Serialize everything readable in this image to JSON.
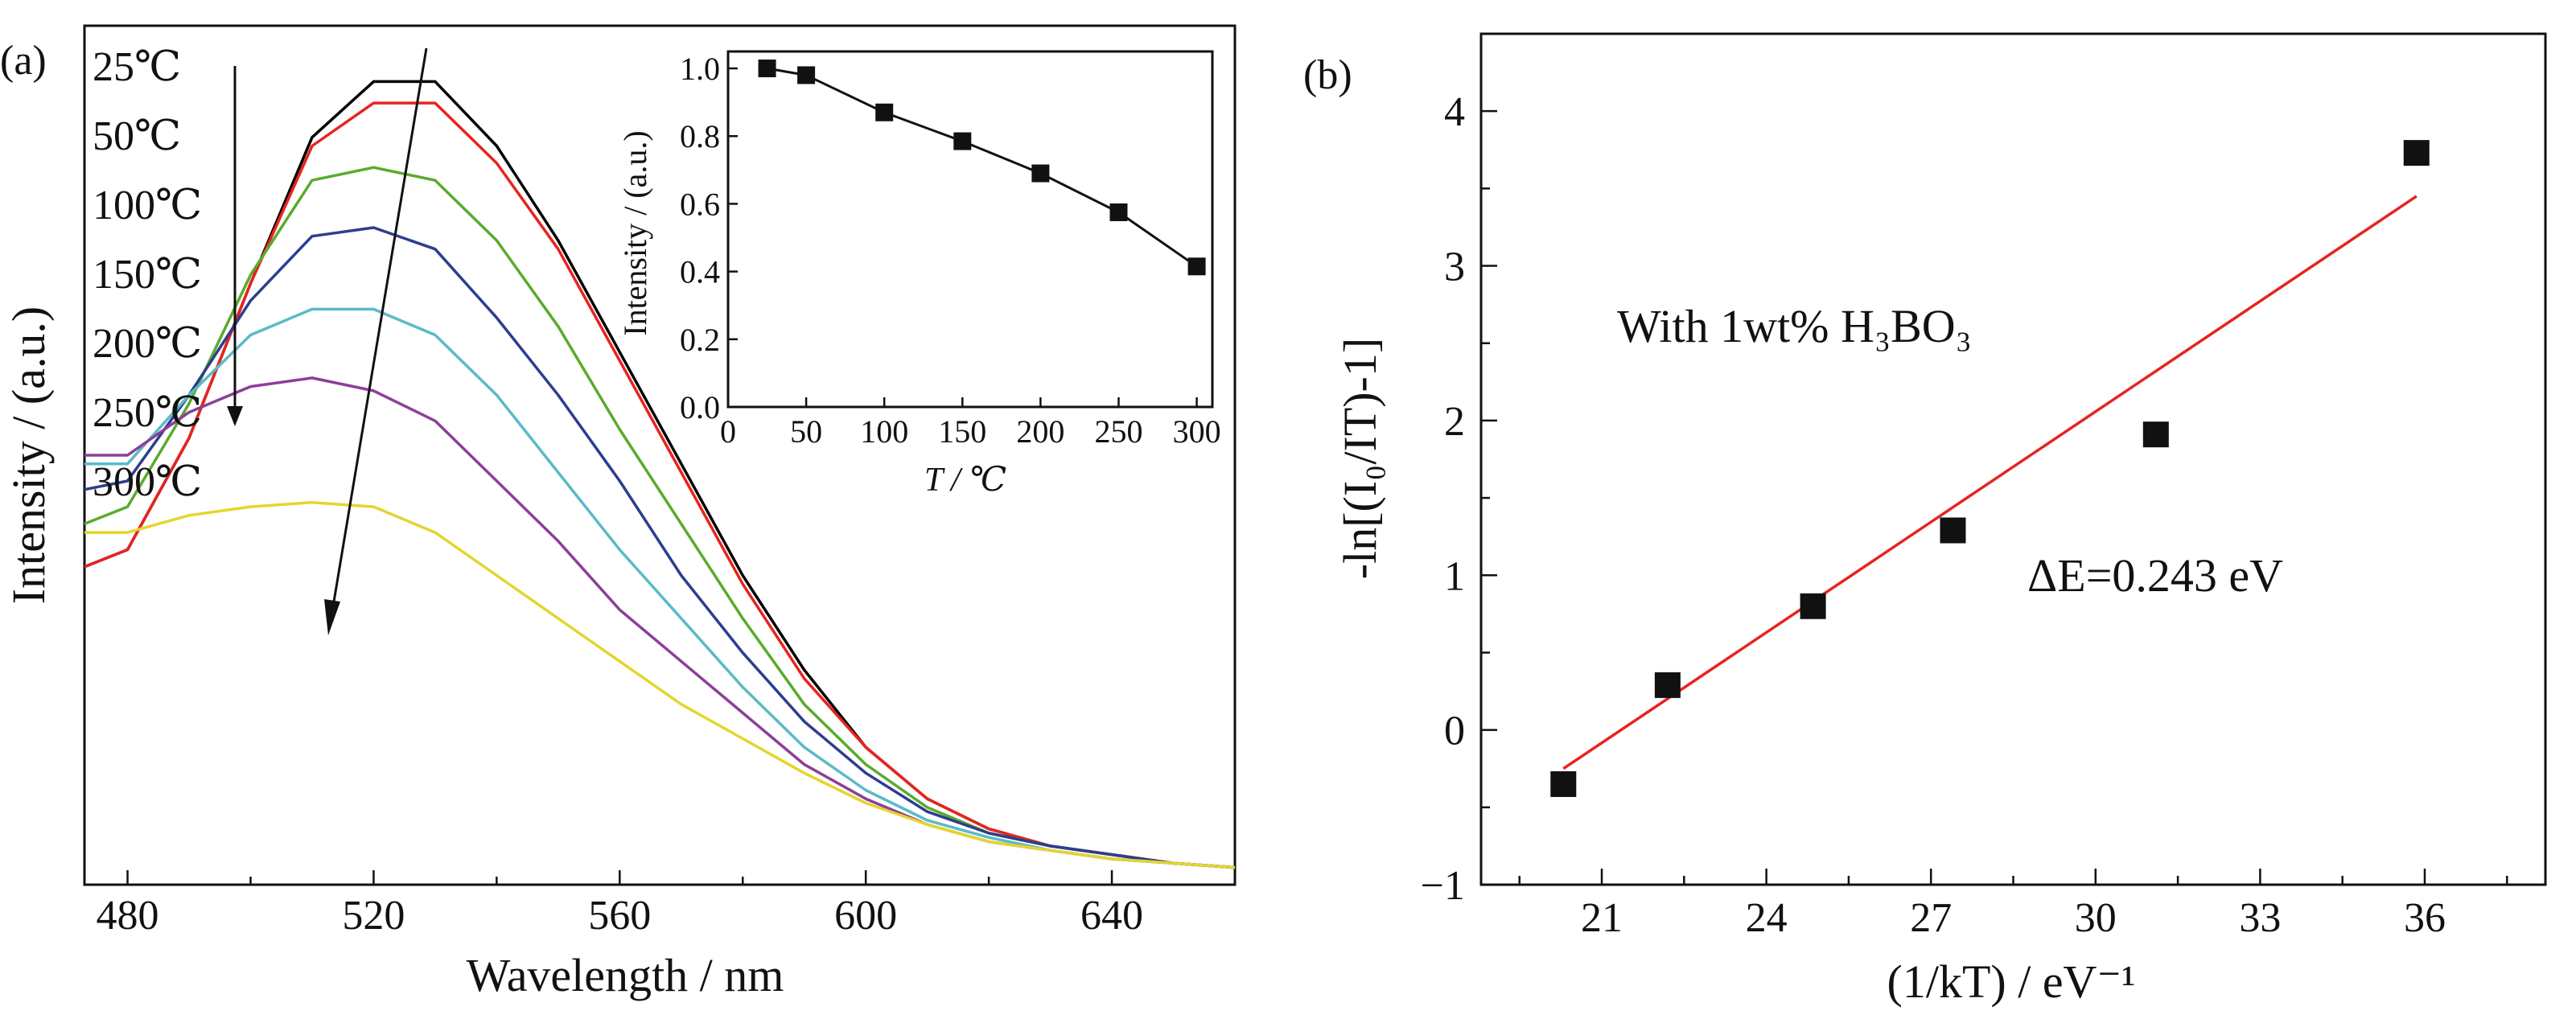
{
  "chart_data": [
    {
      "type": "line",
      "panel_label": "(a)",
      "xlabel": "Wavelength / nm",
      "ylabel": "Intensity / (a.u.)",
      "xlim": [
        473,
        660
      ],
      "ylim": [
        0,
        1
      ],
      "xticks": [
        "480",
        "520",
        "560",
        "600",
        "640"
      ],
      "grid": false,
      "legend": "top-left",
      "x": [
        473,
        480,
        490,
        500,
        510,
        520,
        530,
        540,
        550,
        560,
        570,
        580,
        590,
        600,
        610,
        620,
        630,
        640,
        650,
        660
      ],
      "series": [
        {
          "name": "25℃",
          "color": "#000000",
          "values": [
            0.37,
            0.39,
            0.52,
            0.7,
            0.87,
            0.935,
            0.935,
            0.86,
            0.75,
            0.62,
            0.49,
            0.36,
            0.25,
            0.16,
            0.1,
            0.065,
            0.045,
            0.035,
            0.025,
            0.02
          ]
        },
        {
          "name": "50℃",
          "color": "#e8231f",
          "values": [
            0.37,
            0.39,
            0.52,
            0.7,
            0.86,
            0.91,
            0.91,
            0.84,
            0.74,
            0.61,
            0.48,
            0.35,
            0.24,
            0.16,
            0.1,
            0.065,
            0.045,
            0.035,
            0.025,
            0.02
          ]
        },
        {
          "name": "100℃",
          "color": "#5aab2b",
          "values": [
            0.42,
            0.44,
            0.56,
            0.71,
            0.82,
            0.835,
            0.82,
            0.75,
            0.65,
            0.53,
            0.42,
            0.31,
            0.21,
            0.14,
            0.09,
            0.06,
            0.045,
            0.035,
            0.025,
            0.02
          ]
        },
        {
          "name": "150℃",
          "color": "#2e3d8f",
          "values": [
            0.46,
            0.47,
            0.57,
            0.68,
            0.755,
            0.765,
            0.74,
            0.66,
            0.57,
            0.47,
            0.36,
            0.27,
            0.19,
            0.13,
            0.085,
            0.06,
            0.045,
            0.035,
            0.025,
            0.02
          ]
        },
        {
          "name": "200℃",
          "color": "#5bbac7",
          "values": [
            0.49,
            0.49,
            0.57,
            0.64,
            0.67,
            0.67,
            0.64,
            0.57,
            0.48,
            0.39,
            0.31,
            0.23,
            0.16,
            0.11,
            0.075,
            0.055,
            0.04,
            0.03,
            0.025,
            0.02
          ]
        },
        {
          "name": "250℃",
          "color": "#8c3f98",
          "values": [
            0.5,
            0.5,
            0.55,
            0.58,
            0.59,
            0.575,
            0.54,
            0.47,
            0.4,
            0.32,
            0.26,
            0.2,
            0.14,
            0.1,
            0.07,
            0.05,
            0.04,
            0.03,
            0.025,
            0.02
          ]
        },
        {
          "name": "300℃",
          "color": "#e3d62c",
          "values": [
            0.41,
            0.41,
            0.43,
            0.44,
            0.445,
            0.44,
            0.41,
            0.36,
            0.31,
            0.26,
            0.21,
            0.17,
            0.13,
            0.095,
            0.07,
            0.05,
            0.04,
            0.03,
            0.025,
            0.02
          ]
        }
      ],
      "inset": {
        "type": "line",
        "xlabel": "T / ℃",
        "ylabel": "Intensity / (a.u.)",
        "xlim": [
          0,
          310
        ],
        "ylim": [
          0.0,
          1.05
        ],
        "xticks": [
          "0",
          "50",
          "100",
          "150",
          "200",
          "250",
          "300"
        ],
        "yticks": [
          "0.0",
          "0.2",
          "0.4",
          "0.6",
          "0.8",
          "1.0"
        ],
        "x": [
          25,
          50,
          100,
          150,
          200,
          250,
          300
        ],
        "y": [
          1.0,
          0.98,
          0.87,
          0.785,
          0.69,
          0.575,
          0.415
        ]
      }
    },
    {
      "type": "scatter",
      "panel_label": "(b)",
      "xlabel": "(1/kT) / eV⁻¹",
      "ylabel": "-ln[(I₀/IT)-1]",
      "xlim": [
        18.8,
        38.2
      ],
      "ylim": [
        -1,
        4.5
      ],
      "xticks": [
        "21",
        "24",
        "27",
        "30",
        "33",
        "36"
      ],
      "yticks": [
        "−1",
        "0",
        "1",
        "2",
        "3",
        "4"
      ],
      "grid": false,
      "x": [
        20.3,
        22.2,
        24.85,
        27.4,
        31.1,
        35.85
      ],
      "y": [
        -0.35,
        0.29,
        0.8,
        1.29,
        1.91,
        3.73
      ],
      "fit": {
        "x": [
          20.3,
          35.85
        ],
        "y": [
          -0.25,
          3.45
        ],
        "color": "#e8231f"
      },
      "annotations": [
        "With 1wt% H₃BO₃",
        "ΔE=0.243 eV"
      ]
    }
  ]
}
